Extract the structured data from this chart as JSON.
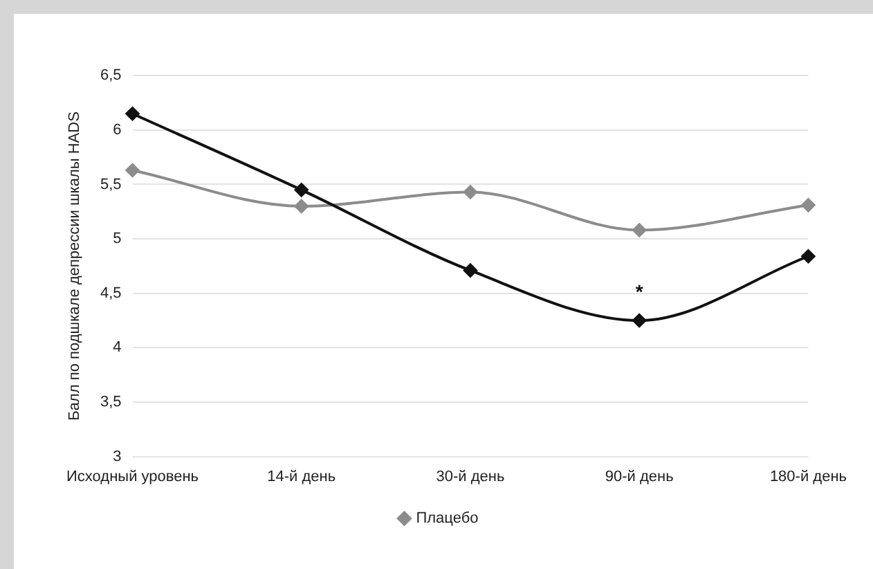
{
  "chart_data": {
    "type": "line",
    "ylabel": "Балл по подшкале депрессии шкалы HADS",
    "categories": [
      "Исходный уровень",
      "14-й день",
      "30-й день",
      "90-й день",
      "180-й день"
    ],
    "series": [
      {
        "color": "#111111",
        "values": [
          6.15,
          5.45,
          4.71,
          4.25,
          4.84
        ]
      },
      {
        "name": "Плацебо",
        "color": "#8c8c8c",
        "values": [
          5.63,
          5.3,
          5.43,
          5.08,
          5.31
        ]
      }
    ],
    "ylim": [
      3,
      6.5
    ],
    "yticks": [
      {
        "value": 3,
        "label": "3"
      },
      {
        "value": 3.5,
        "label": "3,5"
      },
      {
        "value": 4,
        "label": "4"
      },
      {
        "value": 4.5,
        "label": "4,5"
      },
      {
        "value": 5,
        "label": "5"
      },
      {
        "value": 5.5,
        "label": "5,5"
      },
      {
        "value": 6,
        "label": "6"
      },
      {
        "value": 6.5,
        "label": "6,5"
      }
    ],
    "grid": "y",
    "legend": "bottom",
    "marker": "diamond",
    "line_style": "solid",
    "annotations": [
      {
        "text": "*",
        "x": "90-й день",
        "y": 4.25
      }
    ]
  }
}
